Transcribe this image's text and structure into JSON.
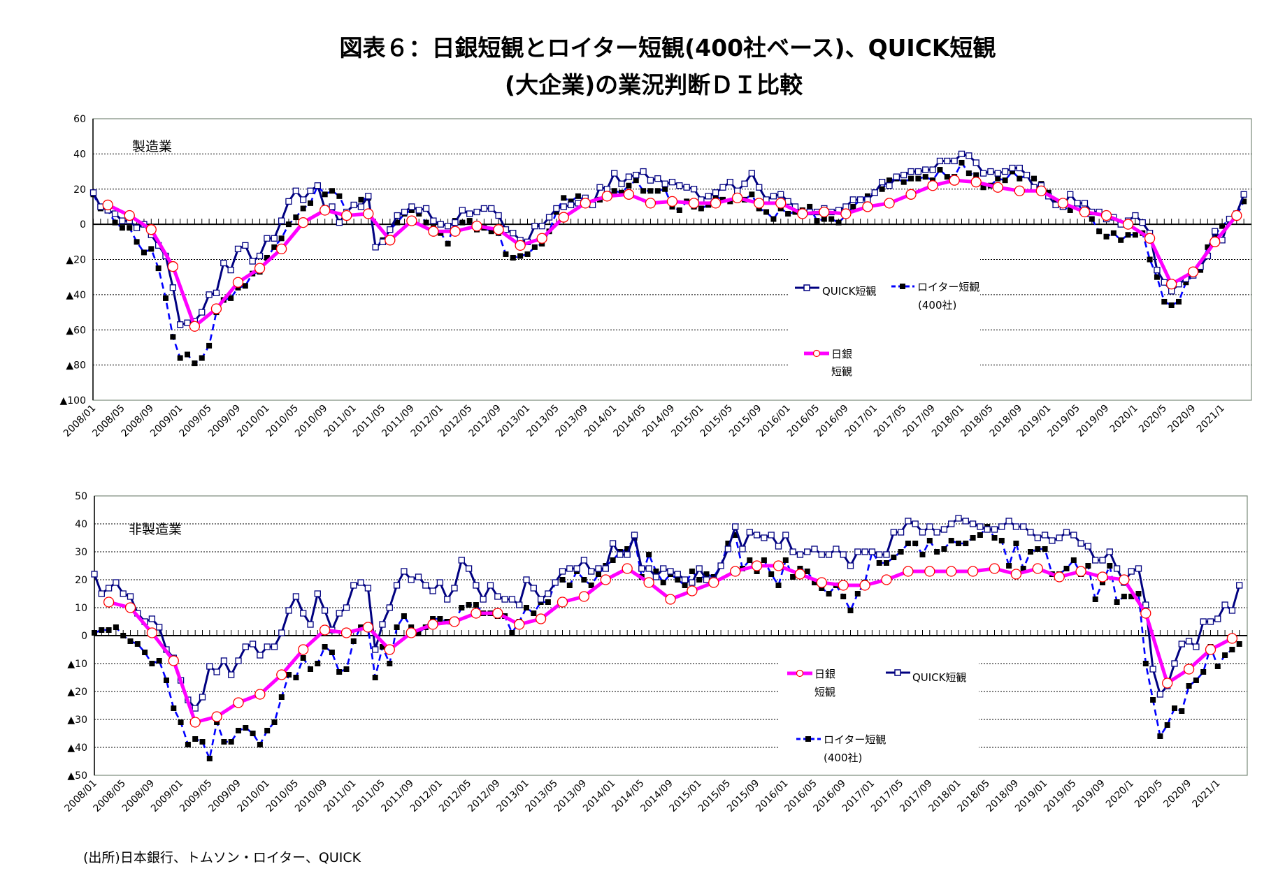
{
  "title_line1": "図表６：日銀短観とロイター短観(400社ベース)、QUICK短観",
  "title_line2": "(大企業)の業況判断ＤＩ比較",
  "source": "(出所)日本銀行、トムソン・ロイター、QUICK",
  "legend": {
    "quick": "QUICK短観",
    "reuters_1": "ロイター短観",
    "reuters_2": "(400社)",
    "boj_1": "日銀",
    "boj_2": "短観"
  },
  "colors": {
    "quick": "#000080",
    "reuters": "#0000FF",
    "boj": "#FF00FF",
    "boj_marker": "#FF0000"
  },
  "chart_data": {
    "type": "line",
    "grid": "horizontal dotted",
    "x_tick_labels": [
      "2008/01",
      "2008/05",
      "2008/09",
      "2009/01",
      "2009/05",
      "2009/09",
      "2010/01",
      "2010/05",
      "2010/09",
      "2011/01",
      "2011/05",
      "2011/09",
      "2012/01",
      "2012/05",
      "2012/09",
      "2013/01",
      "2013/05",
      "2013/09",
      "2014/01",
      "2014/05",
      "2014/09",
      "2015/01",
      "2015/05",
      "2015/09",
      "2016/01",
      "2016/05",
      "2016/09",
      "2017/01",
      "2017/05",
      "2017/09",
      "2018/01",
      "2018/05",
      "2018/09",
      "2019/01",
      "2019/05",
      "2019/09",
      "2020/1",
      "2020/5",
      "2020/9",
      "2021/1"
    ],
    "x": [
      "2008/01",
      "2008/02",
      "2008/03",
      "2008/04",
      "2008/05",
      "2008/06",
      "2008/07",
      "2008/08",
      "2008/09",
      "2008/10",
      "2008/11",
      "2008/12",
      "2009/01",
      "2009/02",
      "2009/03",
      "2009/04",
      "2009/05",
      "2009/06",
      "2009/07",
      "2009/08",
      "2009/09",
      "2009/10",
      "2009/11",
      "2009/12",
      "2010/01",
      "2010/02",
      "2010/03",
      "2010/04",
      "2010/05",
      "2010/06",
      "2010/07",
      "2010/08",
      "2010/09",
      "2010/10",
      "2010/11",
      "2010/12",
      "2011/01",
      "2011/02",
      "2011/03",
      "2011/04",
      "2011/05",
      "2011/06",
      "2011/07",
      "2011/08",
      "2011/09",
      "2011/10",
      "2011/11",
      "2011/12",
      "2012/01",
      "2012/02",
      "2012/03",
      "2012/04",
      "2012/05",
      "2012/06",
      "2012/07",
      "2012/08",
      "2012/09",
      "2012/10",
      "2012/11",
      "2012/12",
      "2013/01",
      "2013/02",
      "2013/03",
      "2013/04",
      "2013/05",
      "2013/06",
      "2013/07",
      "2013/08",
      "2013/09",
      "2013/10",
      "2013/11",
      "2013/12",
      "2014/01",
      "2014/02",
      "2014/03",
      "2014/04",
      "2014/05",
      "2014/06",
      "2014/07",
      "2014/08",
      "2014/09",
      "2014/10",
      "2014/11",
      "2014/12",
      "2015/01",
      "2015/02",
      "2015/03",
      "2015/04",
      "2015/05",
      "2015/06",
      "2015/07",
      "2015/08",
      "2015/09",
      "2015/10",
      "2015/11",
      "2015/12",
      "2016/01",
      "2016/02",
      "2016/03",
      "2016/04",
      "2016/05",
      "2016/06",
      "2016/07",
      "2016/08",
      "2016/09",
      "2016/10",
      "2016/11",
      "2016/12",
      "2017/01",
      "2017/02",
      "2017/03",
      "2017/04",
      "2017/05",
      "2017/06",
      "2017/07",
      "2017/08",
      "2017/09",
      "2017/10",
      "2017/11",
      "2017/12",
      "2018/01",
      "2018/02",
      "2018/03",
      "2018/04",
      "2018/05",
      "2018/06",
      "2018/07",
      "2018/08",
      "2018/09",
      "2018/10",
      "2018/11",
      "2018/12",
      "2019/01",
      "2019/02",
      "2019/03",
      "2019/04",
      "2019/05",
      "2019/06",
      "2019/07",
      "2019/08",
      "2019/09",
      "2019/10",
      "2019/11",
      "2019/12",
      "2020/01",
      "2020/02",
      "2020/03",
      "2020/04",
      "2020/05",
      "2020/06",
      "2020/07",
      "2020/08",
      "2020/09",
      "2020/10",
      "2020/11",
      "2020/12",
      "2021/01",
      "2021/02",
      "2021/03",
      "2021/04"
    ],
    "boj_x": [
      "2008/03",
      "2008/06",
      "2008/09",
      "2008/12",
      "2009/03",
      "2009/06",
      "2009/09",
      "2009/12",
      "2010/03",
      "2010/06",
      "2010/09",
      "2010/12",
      "2011/03",
      "2011/06",
      "2011/09",
      "2011/12",
      "2012/03",
      "2012/06",
      "2012/09",
      "2012/12",
      "2013/03",
      "2013/06",
      "2013/09",
      "2013/12",
      "2014/03",
      "2014/06",
      "2014/09",
      "2014/12",
      "2015/03",
      "2015/06",
      "2015/09",
      "2015/12",
      "2016/03",
      "2016/06",
      "2016/09",
      "2016/12",
      "2017/03",
      "2017/06",
      "2017/09",
      "2017/12",
      "2018/03",
      "2018/06",
      "2018/09",
      "2018/12",
      "2019/03",
      "2019/06",
      "2019/09",
      "2019/12",
      "2020/03",
      "2020/06",
      "2020/09",
      "2020/12",
      "2021/03"
    ],
    "charts": [
      {
        "label": "製造業",
        "ylim": [
          -100,
          60
        ],
        "y_ticks": [
          {
            "value": 60,
            "label": "60"
          },
          {
            "value": 40,
            "label": "40"
          },
          {
            "value": 20,
            "label": "20"
          },
          {
            "value": 0,
            "label": "0"
          },
          {
            "value": -20,
            "label": "▲20"
          },
          {
            "value": -40,
            "label": "▲40"
          },
          {
            "value": -60,
            "label": "▲60"
          },
          {
            "value": -80,
            "label": "▲80"
          },
          {
            "value": -100,
            "label": "▲100"
          }
        ],
        "quick": [
          18,
          10,
          8,
          6,
          2,
          2,
          -2,
          0,
          -6,
          -12,
          -18,
          -36,
          -57,
          -56,
          -55,
          -50,
          -40,
          -39,
          -22,
          -26,
          -14,
          -12,
          -21,
          -18,
          -8,
          -8,
          2,
          13,
          19,
          14,
          19,
          22,
          9,
          10,
          1,
          7,
          11,
          10,
          16,
          -13,
          -10,
          -3,
          5,
          7,
          10,
          8,
          9,
          2,
          0,
          -1,
          1,
          8,
          6,
          7,
          9,
          9,
          5,
          -3,
          -5,
          -9,
          -10,
          -1,
          -1,
          4,
          9,
          10,
          11,
          12,
          15,
          11,
          21,
          20,
          29,
          23,
          27,
          28,
          30,
          25,
          26,
          23,
          24,
          22,
          21,
          20,
          14,
          16,
          18,
          21,
          24,
          19,
          23,
          29,
          21,
          14,
          16,
          17,
          13,
          10,
          6,
          7,
          7,
          9,
          7,
          8,
          10,
          14,
          14,
          14,
          18,
          24,
          22,
          27,
          28,
          30,
          30,
          31,
          31,
          36,
          36,
          36,
          40,
          39,
          35,
          29,
          30,
          29,
          30,
          32,
          32,
          28,
          21,
          22,
          16,
          11,
          10,
          17,
          12,
          12,
          7,
          7,
          3,
          4,
          0,
          2,
          5,
          1,
          -5,
          -26,
          -33,
          -38,
          -34,
          -31,
          -29,
          -24,
          -18,
          -4,
          -9,
          3,
          6,
          17
        ],
        "reuters": [
          17,
          9,
          8,
          1,
          -2,
          -2,
          -10,
          -16,
          -14,
          -25,
          -42,
          -64,
          -76,
          -74,
          -79,
          -76,
          -69,
          -50,
          -43,
          -42,
          -36,
          -35,
          -28,
          -27,
          -19,
          -13,
          -8,
          0,
          4,
          9,
          12,
          22,
          17,
          19,
          16,
          7,
          11,
          14,
          15,
          -13,
          -9,
          -3,
          1,
          6,
          8,
          6,
          1,
          -2,
          -5,
          -11,
          2,
          1,
          2,
          -3,
          -2,
          -4,
          -5,
          -17,
          -19,
          -18,
          -17,
          -13,
          -11,
          -4,
          7,
          15,
          13,
          16,
          13,
          11,
          14,
          17,
          19,
          18,
          22,
          25,
          19,
          19,
          19,
          20,
          10,
          8,
          13,
          10,
          9,
          11,
          16,
          14,
          13,
          15,
          14,
          17,
          9,
          7,
          3,
          9,
          6,
          7,
          8,
          10,
          2,
          3,
          3,
          1,
          5,
          10,
          14,
          16,
          18,
          20,
          25,
          26,
          24,
          26,
          26,
          27,
          25,
          31,
          27,
          27,
          35,
          29,
          28,
          21,
          22,
          26,
          25,
          30,
          26,
          28,
          26,
          23,
          18,
          13,
          10,
          8,
          12,
          6,
          3,
          -4,
          -7,
          -5,
          -9,
          -6,
          -6,
          -5,
          -20,
          -30,
          -44,
          -46,
          -44,
          -33,
          -29,
          -26,
          -13,
          -6,
          -1,
          3,
          5,
          13
        ],
        "boj": [
          11,
          5,
          -3,
          -24,
          -58,
          -48,
          -33,
          -25,
          -14,
          1,
          8,
          5,
          6,
          -9,
          2,
          -4,
          -4,
          -1,
          -3,
          -12,
          -8,
          4,
          12,
          16,
          17,
          12,
          13,
          12,
          12,
          15,
          12,
          12,
          6,
          7,
          6,
          10,
          12,
          17,
          22,
          25,
          24,
          21,
          19,
          19,
          12,
          7,
          5,
          0,
          -8,
          -34,
          -27,
          -10,
          5
        ]
      },
      {
        "label": "非製造業",
        "ylim": [
          -50,
          50
        ],
        "y_ticks": [
          {
            "value": 50,
            "label": "50"
          },
          {
            "value": 40,
            "label": "40"
          },
          {
            "value": 30,
            "label": "30"
          },
          {
            "value": 20,
            "label": "20"
          },
          {
            "value": 10,
            "label": "10"
          },
          {
            "value": 0,
            "label": "0"
          },
          {
            "value": -10,
            "label": "▲10"
          },
          {
            "value": -20,
            "label": "▲20"
          },
          {
            "value": -30,
            "label": "▲30"
          },
          {
            "value": -40,
            "label": "▲40"
          },
          {
            "value": -50,
            "label": "▲50"
          }
        ],
        "quick": [
          22,
          15,
          17,
          19,
          15,
          14,
          8,
          5,
          6,
          3,
          -5,
          -8,
          -16,
          -23,
          -26,
          -22,
          -11,
          -13,
          -9,
          -14,
          -9,
          -4,
          -3,
          -7,
          -4,
          -4,
          1,
          9,
          14,
          8,
          4,
          15,
          9,
          2,
          8,
          10,
          18,
          19,
          17,
          -5,
          4,
          10,
          18,
          23,
          20,
          21,
          18,
          16,
          19,
          13,
          17,
          27,
          24,
          18,
          13,
          18,
          14,
          13,
          13,
          11,
          20,
          17,
          13,
          15,
          19,
          23,
          24,
          24,
          27,
          23,
          24,
          24,
          33,
          29,
          29,
          36,
          24,
          24,
          21,
          24,
          23,
          22,
          20,
          19,
          24,
          20,
          20,
          25,
          31,
          39,
          31,
          37,
          36,
          35,
          36,
          32,
          36,
          30,
          29,
          30,
          31,
          29,
          29,
          31,
          29,
          25,
          30,
          30,
          30,
          29,
          29,
          37,
          37,
          41,
          40,
          37,
          39,
          37,
          38,
          40,
          42,
          41,
          40,
          39,
          38,
          38,
          39,
          41,
          39,
          39,
          37,
          35,
          36,
          34,
          35,
          37,
          36,
          33,
          32,
          27,
          27,
          30,
          24,
          19,
          23,
          24,
          11,
          -12,
          -21,
          -18,
          -10,
          -3,
          -2,
          -4,
          5,
          5,
          6,
          11,
          9,
          18
        ],
        "reuters": [
          1,
          2,
          2,
          3,
          0,
          -2,
          -3,
          -6,
          -10,
          -9,
          -16,
          -26,
          -31,
          -39,
          -37,
          -38,
          -44,
          -31,
          -38,
          -38,
          -34,
          -33,
          -35,
          -39,
          -34,
          -31,
          -22,
          -14,
          -15,
          -8,
          -12,
          -10,
          -4,
          -6,
          -13,
          -12,
          -2,
          3,
          3,
          -15,
          -4,
          -10,
          3,
          7,
          3,
          1,
          3,
          6,
          6,
          5,
          5,
          10,
          11,
          11,
          8,
          8,
          7,
          7,
          1,
          5,
          10,
          8,
          12,
          12,
          19,
          20,
          18,
          23,
          20,
          18,
          22,
          25,
          27,
          30,
          31,
          35,
          21,
          29,
          23,
          19,
          22,
          20,
          18,
          23,
          20,
          22,
          21,
          25,
          33,
          36,
          24,
          27,
          23,
          27,
          22,
          18,
          27,
          21,
          24,
          23,
          19,
          17,
          15,
          18,
          14,
          9,
          15,
          19,
          30,
          26,
          26,
          28,
          30,
          33,
          33,
          29,
          34,
          30,
          31,
          34,
          33,
          33,
          35,
          36,
          39,
          35,
          34,
          25,
          33,
          24,
          30,
          31,
          31,
          22,
          22,
          24,
          27,
          22,
          25,
          13,
          19,
          25,
          12,
          14,
          14,
          15,
          -10,
          -23,
          -36,
          -32,
          -26,
          -27,
          -18,
          -16,
          -13,
          -4,
          -11,
          -7,
          -5,
          -3
        ],
        "boj": [
          12,
          10,
          1,
          -9,
          -31,
          -29,
          -24,
          -21,
          -14,
          -5,
          2,
          1,
          3,
          -5,
          1,
          4,
          5,
          8,
          8,
          4,
          6,
          12,
          14,
          20,
          24,
          19,
          13,
          16,
          19,
          23,
          25,
          25,
          22,
          19,
          18,
          18,
          20,
          23,
          23,
          23,
          23,
          24,
          22,
          24,
          21,
          23,
          21,
          20,
          8,
          -17,
          -12,
          -5,
          -1
        ]
      }
    ]
  }
}
